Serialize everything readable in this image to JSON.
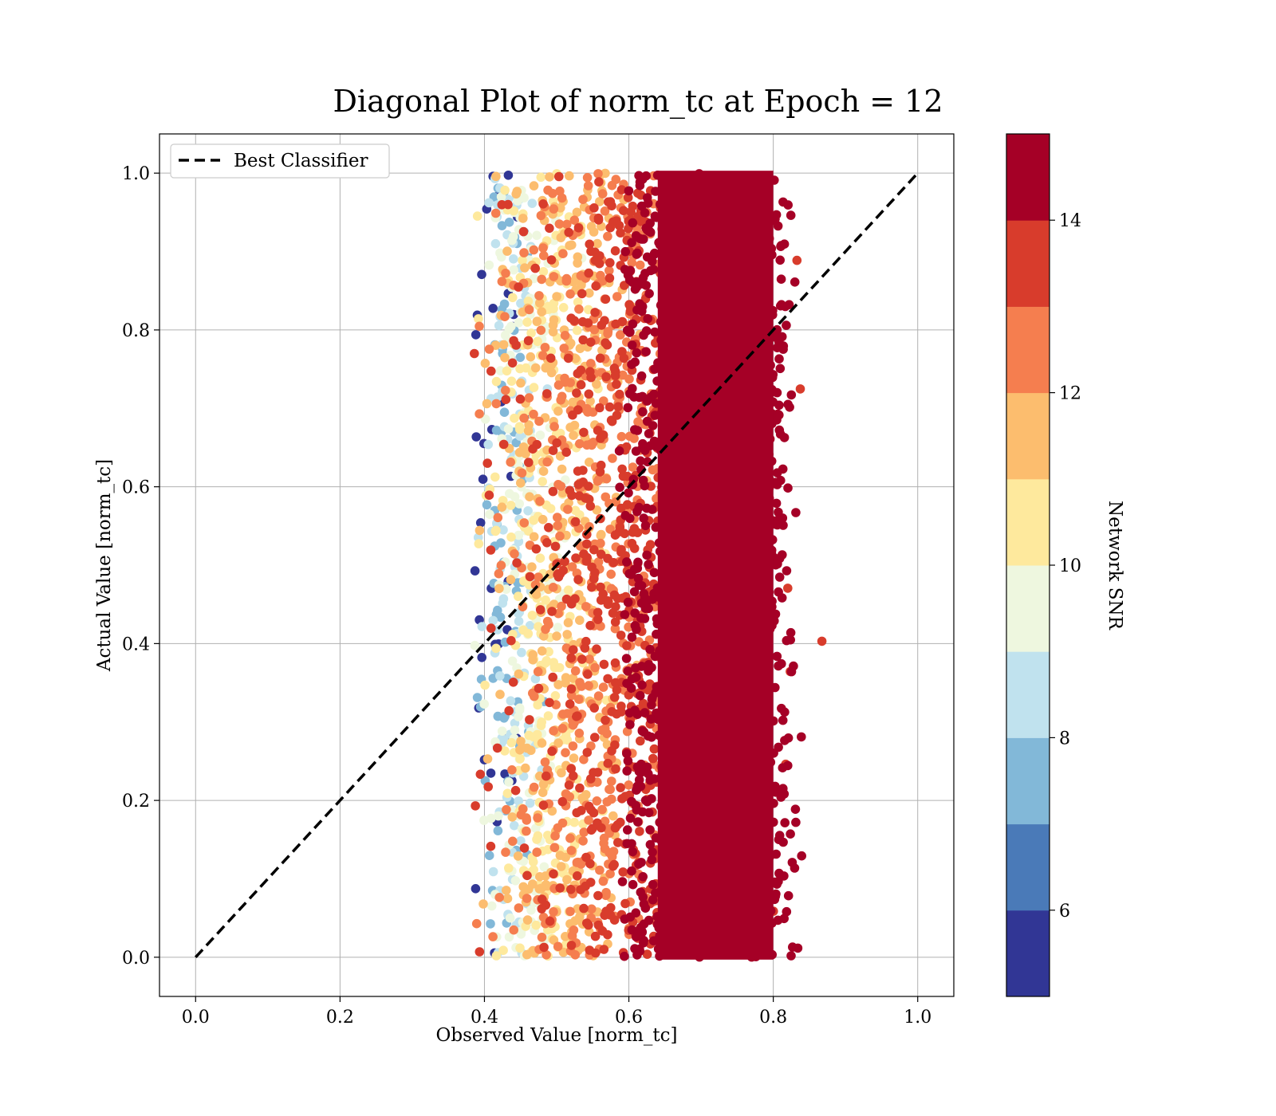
{
  "chart_data": {
    "type": "scatter",
    "title": "Diagonal Plot of norm_tc at Epoch = 12",
    "xlabel": "Observed Value [norm_tc]",
    "ylabel": "Actual Value [norm_tc]",
    "xlim": [
      -0.05,
      1.05
    ],
    "ylim": [
      -0.05,
      1.05
    ],
    "xticks": [
      "0.0",
      "0.2",
      "0.4",
      "0.6",
      "0.8",
      "1.0"
    ],
    "yticks": [
      "0.0",
      "0.2",
      "0.4",
      "0.6",
      "0.8",
      "1.0"
    ],
    "grid": true,
    "legend": {
      "position": "top-left",
      "entries": [
        "Best Classifier"
      ]
    },
    "reference_line": {
      "name": "Best Classifier",
      "x": [
        0,
        1
      ],
      "y": [
        0,
        1
      ],
      "style": "dashed",
      "color": "#000000"
    },
    "scatter_description": {
      "y_range": [
        0,
        1
      ],
      "observed_band_by_snr": [
        {
          "snr": 5.5,
          "x_center": 0.42
        },
        {
          "snr": 7.0,
          "x_center": 0.43
        },
        {
          "snr": 8.5,
          "x_center": 0.44
        },
        {
          "snr": 9.5,
          "x_center": 0.46
        },
        {
          "snr": 10.5,
          "x_center": 0.48
        },
        {
          "snr": 11.5,
          "x_center": 0.51
        },
        {
          "snr": 12.5,
          "x_center": 0.55
        },
        {
          "snr": 13.5,
          "x_center": 0.6
        },
        {
          "snr": 14.5,
          "x_center": 0.71
        }
      ]
    },
    "colorbar": {
      "label": "Network SNR",
      "range": [
        5,
        15
      ],
      "ticks": [
        "6",
        "8",
        "10",
        "12",
        "14"
      ],
      "colors": [
        "#313695",
        "#4a7ab8",
        "#82b8d8",
        "#c0e2ee",
        "#eef7df",
        "#fee99d",
        "#fcbd6e",
        "#f57e4f",
        "#d83c2c",
        "#a50026"
      ]
    }
  }
}
